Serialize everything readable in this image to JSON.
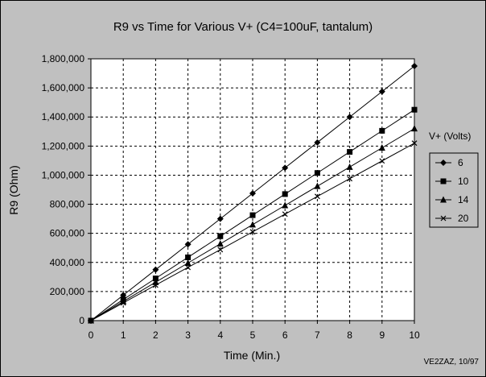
{
  "chart_data": {
    "type": "line",
    "title": "R9 vs Time for Various V+ (C4=100uF, tantalum)",
    "xlabel": "Time (Min.)",
    "ylabel": "R9 (Ohm)",
    "xlim": [
      0,
      10
    ],
    "ylim": [
      0,
      1800000
    ],
    "x_ticks": [
      "0",
      "1",
      "2",
      "3",
      "4",
      "5",
      "6",
      "7",
      "8",
      "9",
      "10"
    ],
    "y_ticks": [
      "0",
      "200,000",
      "400,000",
      "600,000",
      "800,000",
      "1,000,000",
      "1,200,000",
      "1,400,000",
      "1,600,000",
      "1,800,000"
    ],
    "grid": true,
    "legend": {
      "title": "V+ (Volts)",
      "placement": "right"
    },
    "x": [
      0,
      1,
      2,
      3,
      4,
      5,
      6,
      7,
      8,
      9,
      10
    ],
    "series": [
      {
        "name": "6",
        "marker": "diamond",
        "values": [
          0,
          175000,
          350000,
          525000,
          700000,
          875000,
          1050000,
          1225000,
          1400000,
          1575000,
          1750000
        ]
      },
      {
        "name": "10",
        "marker": "square",
        "values": [
          0,
          145000,
          290000,
          435000,
          580000,
          725000,
          870000,
          1015000,
          1160000,
          1305000,
          1450000
        ]
      },
      {
        "name": "14",
        "marker": "triangle",
        "values": [
          0,
          132000,
          264000,
          396000,
          528000,
          660000,
          792000,
          924000,
          1056000,
          1188000,
          1320000
        ]
      },
      {
        "name": "20",
        "marker": "x",
        "values": [
          0,
          122000,
          244000,
          366000,
          488000,
          610000,
          732000,
          854000,
          976000,
          1098000,
          1220000
        ]
      }
    ],
    "credit": "VE2ZAZ, 10/97"
  }
}
